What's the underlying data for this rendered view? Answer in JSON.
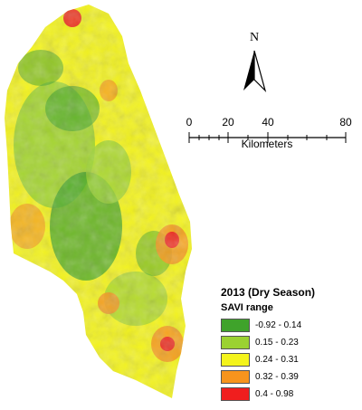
{
  "north_arrow": {
    "letter": "N"
  },
  "scale_bar": {
    "ticks": [
      "0",
      "20",
      "40",
      "80"
    ],
    "units": "Kilometers"
  },
  "legend": {
    "title": "2013 (Dry Season)",
    "subtitle": "SAVI range",
    "classes": [
      {
        "label": "-0.92 - 0.14",
        "color": "#3fa32b"
      },
      {
        "label": "0.15 - 0.23",
        "color": "#9bd232"
      },
      {
        "label": "0.24 - 0.31",
        "color": "#f4f41c"
      },
      {
        "label": "0.32 - 0.39",
        "color": "#f7941d"
      },
      {
        "label": "0.4 - 0.98",
        "color": "#f01e1e"
      }
    ]
  },
  "colors": {
    "vegetation_low": "#3fa32b",
    "vegetation_mid": "#9bd232",
    "vegetation_yellow": "#f4f41c",
    "vegetation_orange": "#f7941d",
    "vegetation_red": "#f01e1e"
  }
}
